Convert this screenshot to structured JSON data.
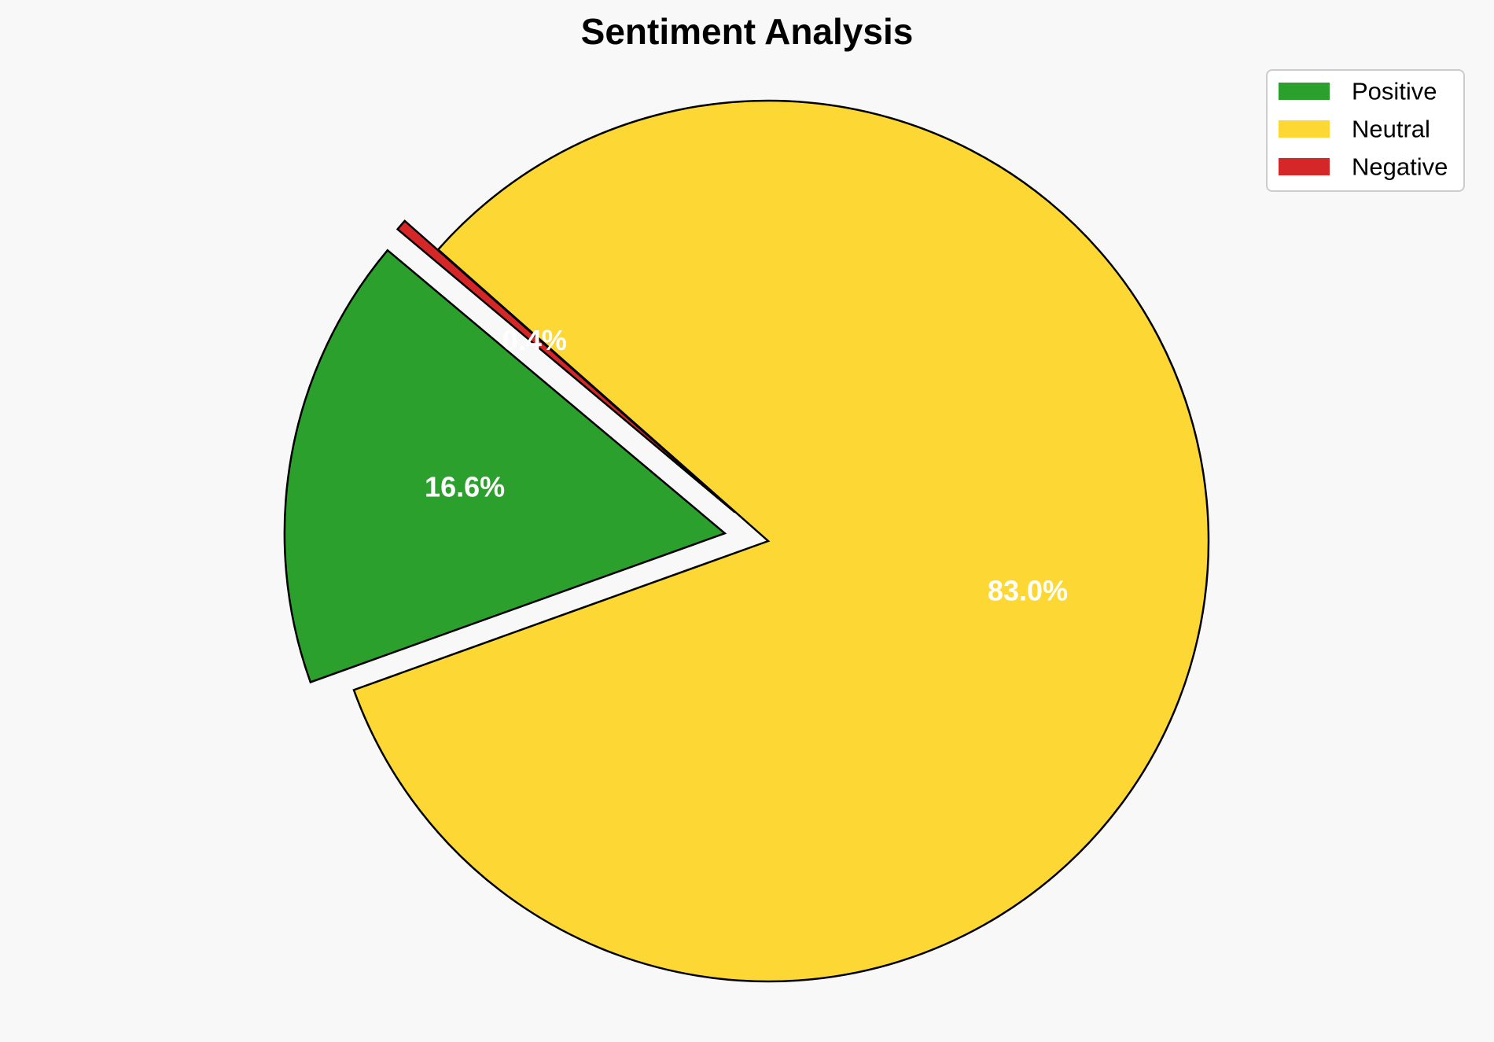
{
  "chart_data": {
    "type": "pie",
    "title": "Sentiment Analysis",
    "labels": [
      "Positive",
      "Neutral",
      "Negative"
    ],
    "values": [
      16.6,
      83.0,
      0.4
    ],
    "value_labels": [
      "16.6%",
      "83.0%",
      "0.4%"
    ],
    "colors": [
      "#2ca02c",
      "#fdd835",
      "#d62728"
    ],
    "exploded": [
      true,
      false,
      true
    ],
    "start_angle_deg": 140,
    "legend": "top-right",
    "edge_color": "#000000"
  }
}
